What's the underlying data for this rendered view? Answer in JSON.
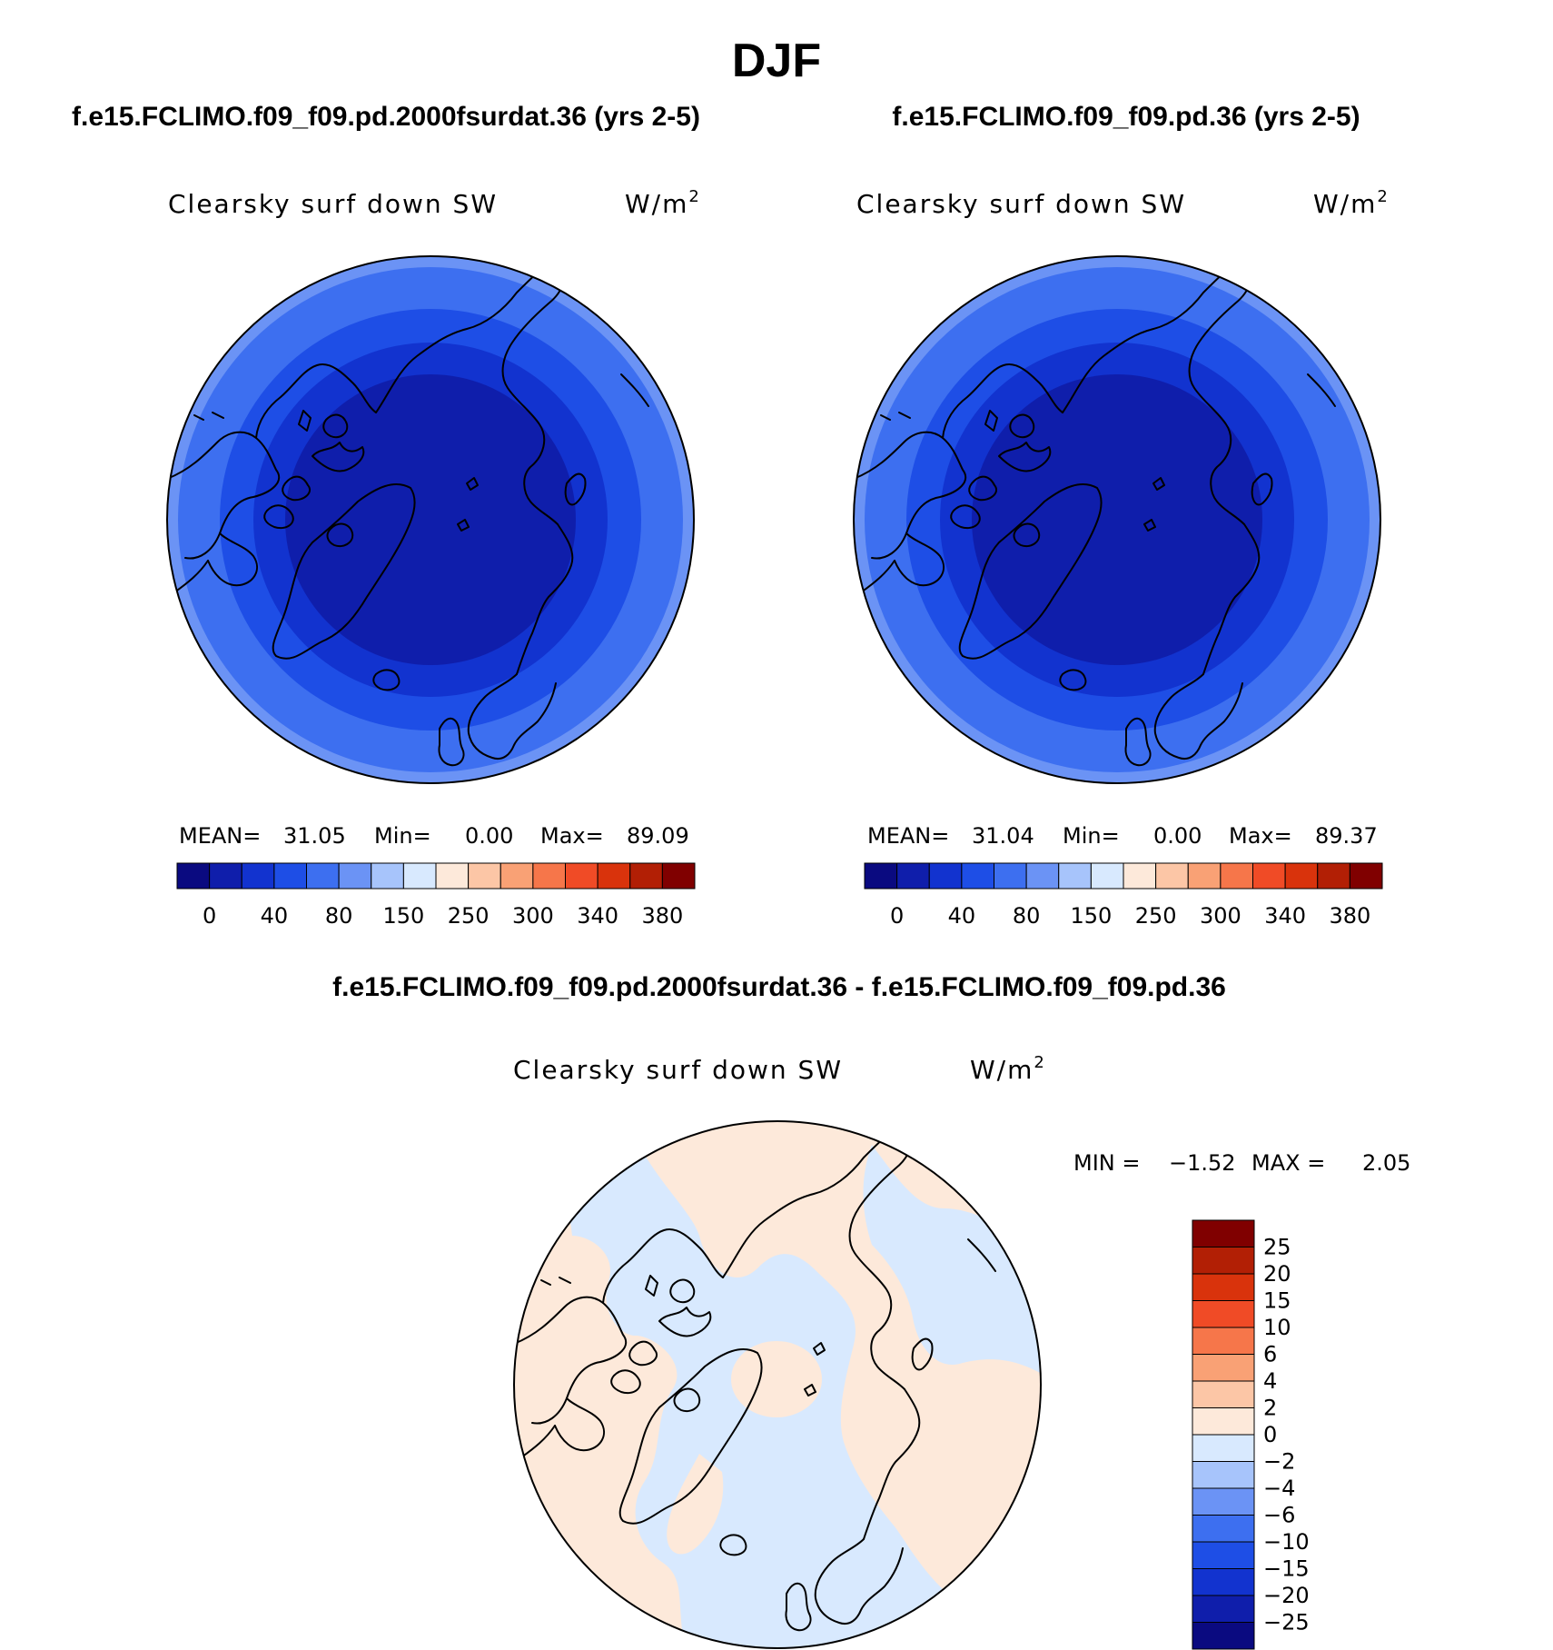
{
  "title": "DJF",
  "panels": [
    {
      "id": "left",
      "case_title": "f.e15.FCLIMO.f09_f09.pd.2000fsurdat.36 (yrs 2-5)",
      "variable": "Clearsky surf down SW",
      "units": "W/m",
      "units_exponent": "2",
      "stats": {
        "mean_label": "MEAN=",
        "mean": "31.05",
        "min_label": "Min=",
        "min": "0.00",
        "max_label": "Max=",
        "max": "89.09"
      }
    },
    {
      "id": "right",
      "case_title": "f.e15.FCLIMO.f09_f09.pd.36 (yrs 2-5)",
      "variable": "Clearsky surf down SW",
      "units": "W/m",
      "units_exponent": "2",
      "stats": {
        "mean_label": "MEAN=",
        "mean": "31.04",
        "min_label": "Min=",
        "min": "0.00",
        "max_label": "Max=",
        "max": "89.37"
      }
    }
  ],
  "diff_panel": {
    "case_title": "f.e15.FCLIMO.f09_f09.pd.2000fsurdat.36 - f.e15.FCLIMO.f09_f09.pd.36",
    "variable": "Clearsky surf down SW",
    "units": "W/m",
    "units_exponent": "2",
    "stats": {
      "min_label": "MIN =",
      "min": "−1.52",
      "max_label": "MAX =",
      "max": "2.05"
    }
  },
  "colorbar_abs": {
    "colors": [
      "#0a0a80",
      "#0f1eab",
      "#1233cf",
      "#1e4ee6",
      "#3d6ff0",
      "#6b93f5",
      "#a7c4fb",
      "#d8e9fe",
      "#fde9da",
      "#fcc6a6",
      "#f9a175",
      "#f6764a",
      "#f04b26",
      "#d9330c",
      "#b21f05",
      "#800000"
    ],
    "labels": [
      "0",
      "40",
      "80",
      "150",
      "250",
      "300",
      "340",
      "380"
    ]
  },
  "colorbar_diff": {
    "colors_bottom_to_top": [
      "#0a0a80",
      "#0f1eab",
      "#1233cf",
      "#1e4ee6",
      "#3d6ff0",
      "#6b93f5",
      "#a7c4fb",
      "#d8e9fe",
      "#fde9da",
      "#fcc6a6",
      "#f9a175",
      "#f6764a",
      "#f04b26",
      "#d9330c",
      "#b21f05",
      "#800000"
    ],
    "labels_top_to_bottom": [
      "25",
      "20",
      "15",
      "10",
      "6",
      "4",
      "2",
      "0",
      "−2",
      "−4",
      "−6",
      "−10",
      "−15",
      "−20",
      "−25"
    ]
  },
  "map_fill_colors": {
    "abs_outer": "#3d6ff0",
    "abs_ring2": "#1e4ee6",
    "abs_ring3": "#1233cf",
    "abs_inner": "#0f1eab",
    "abs_edge": "#6b93f5",
    "diff_negative": "#d8e9fe",
    "diff_positive": "#fde9da"
  }
}
